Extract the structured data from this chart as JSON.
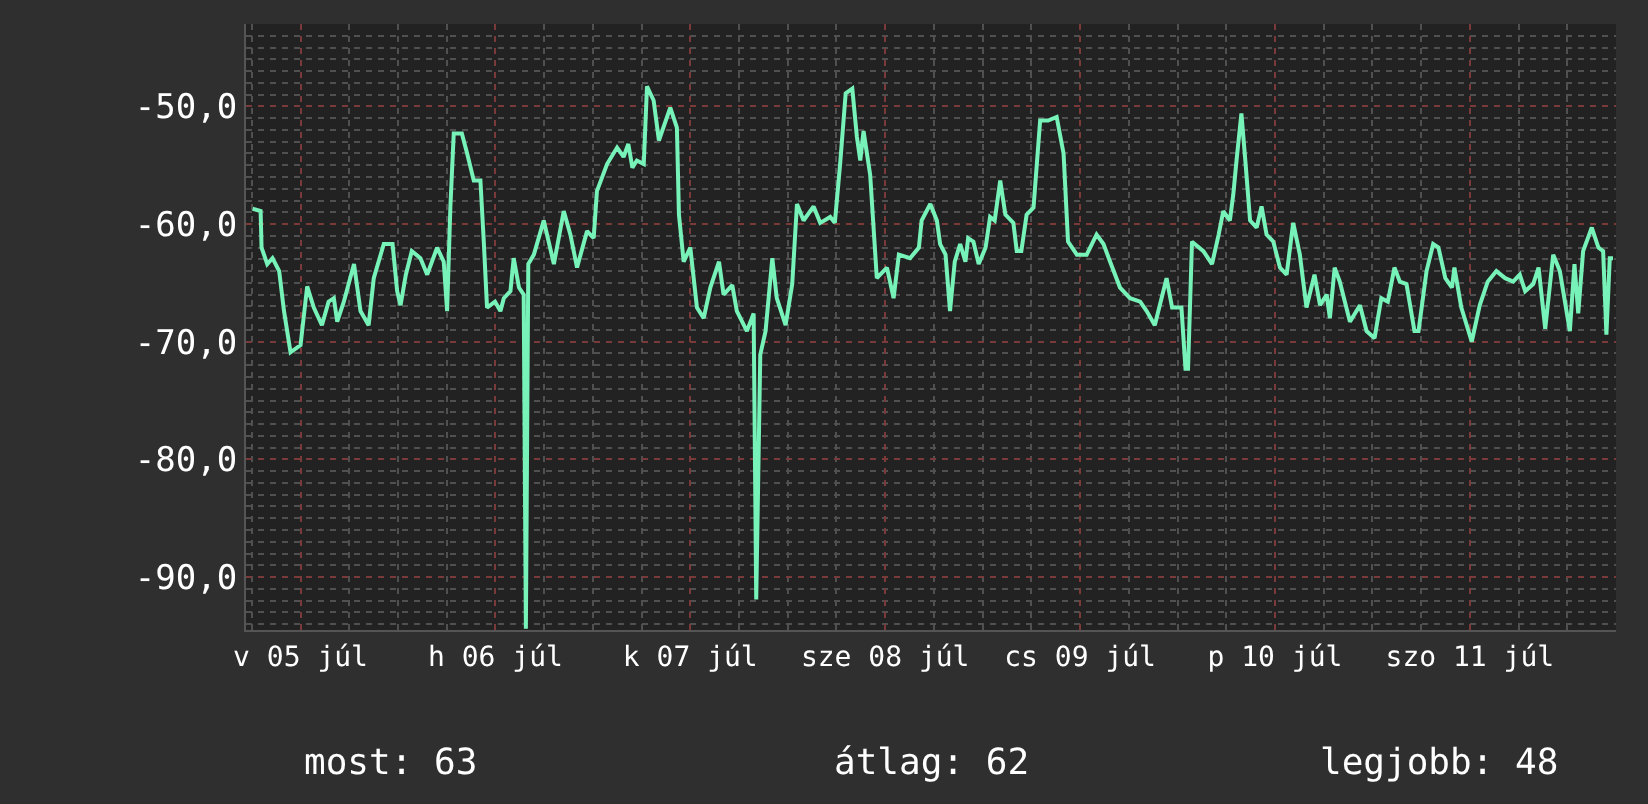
{
  "chart_data": {
    "type": "line",
    "x": [
      "--07-04T18:06",
      "--07-04T19:05",
      "--07-04T19:12",
      "--07-04T19:54",
      "--07-04T20:33",
      "--07-04T21:22",
      "--07-04T21:58",
      "--07-04T22:46",
      "--07-05T00:00",
      "--07-05T00:49",
      "--07-05T01:38",
      "--07-05T02:38",
      "--07-05T03:27",
      "--07-05T04:06",
      "--07-05T04:31",
      "--07-05T05:20",
      "--07-05T06:35",
      "--07-05T07:23",
      "--07-05T08:23",
      "--07-05T09:01",
      "--07-05T10:15",
      "--07-05T11:20",
      "--07-05T11:54",
      "--07-05T12:19",
      "--07-05T12:58",
      "--07-05T13:42",
      "--07-05T14:46",
      "--07-05T15:36",
      "--07-05T16:49",
      "--07-05T17:38",
      "--07-05T18:03",
      "--07-05T18:27",
      "--07-05T18:52",
      "--07-05T19:52",
      "--07-05T20:31",
      "--07-05T21:20",
      "--07-05T22:09",
      "--07-05T22:34",
      "--07-05T22:58",
      "--07-05T23:57",
      "--07-06T00:37",
      "--07-06T01:02",
      "--07-06T01:51",
      "--07-06T02:15",
      "--07-06T02:54",
      "--07-06T03:29",
      "--07-06T03:45",
      "--07-06T04:03",
      "--07-06T04:44",
      "--07-06T05:57",
      "--07-06T07:12",
      "--07-06T08:25",
      "--07-06T09:14",
      "--07-06T10:03",
      "--07-06T11:17",
      "--07-06T12:06",
      "--07-06T12:30",
      "--07-06T13:45",
      "--07-06T14:59",
      "--07-06T15:47",
      "--07-06T16:22",
      "--07-06T16:52",
      "--07-06T17:25",
      "--07-06T18:16",
      "--07-06T18:40",
      "--07-06T19:29",
      "--07-06T20:08",
      "--07-06T21:32",
      "--07-06T22:21",
      "--07-06T22:36",
      "--07-06T23:11",
      "--07-07T00:00",
      "--07-07T00:49",
      "--07-07T01:39",
      "--07-07T02:28",
      "--07-07T03:32",
      "--07-07T04:06",
      "--07-07T05:10",
      "--07-07T05:44",
      "--07-07T06:58",
      "--07-07T07:48",
      "--07-07T08:07",
      "--07-07T08:37",
      "--07-07T09:16",
      "--07-07T10:06",
      "--07-07T10:39",
      "--07-07T11:44",
      "--07-07T12:33",
      "--07-07T13:08",
      "--07-07T13:57",
      "--07-07T15:11",
      "--07-07T16:00",
      "--07-07T17:14",
      "--07-07T17:48",
      "--07-07T18:27",
      "--07-07T19:08",
      "--07-07T19:57",
      "--07-07T20:31",
      "--07-07T20:56",
      "--07-07T21:20",
      "--07-07T22:09",
      "--07-07T22:58",
      "--07-08T00:13",
      "--07-08T01:02",
      "--07-08T01:41",
      "--07-08T03:04",
      "--07-08T04:09",
      "--07-08T04:29",
      "--07-08T05:33",
      "--07-08T06:22",
      "--07-08T06:46",
      "--07-08T07:26",
      "--07-08T07:59",
      "--07-08T08:34",
      "--07-08T09:14",
      "--07-08T09:53",
      "--07-08T10:13",
      "--07-08T10:52",
      "--07-08T11:31",
      "--07-08T12:22",
      "--07-08T12:55",
      "--07-08T13:29",
      "--07-08T14:10",
      "--07-08T14:48",
      "--07-08T15:47",
      "--07-08T16:12",
      "--07-08T16:46",
      "--07-08T17:25",
      "--07-08T18:16",
      "--07-08T19:05",
      "--07-08T20:04",
      "--07-08T21:07",
      "--07-08T21:58",
      "--07-08T22:31",
      "--07-08T23:36",
      "--07-09T00:49",
      "--07-09T02:02",
      "--07-09T02:53",
      "--07-09T03:42",
      "--07-09T04:55",
      "--07-09T06:09",
      "--07-09T07:24",
      "--07-09T08:12",
      "--07-09T09:12",
      "--07-09T10:39",
      "--07-09T11:20",
      "--07-09T12:29",
      "--07-09T12:59",
      "--07-09T13:18",
      "--07-09T13:47",
      "--07-09T15:11",
      "--07-09T16:15",
      "--07-09T17:04",
      "--07-09T17:38",
      "--07-09T18:27",
      "--07-09T18:52",
      "--07-09T19:16",
      "--07-09T19:52",
      "--07-09T20:21",
      "--07-09T20:56",
      "--07-09T21:45",
      "--07-09T22:21",
      "--07-09T22:58",
      "--07-09T23:48",
      "--07-10T00:37",
      "--07-10T01:26",
      "--07-10T02:15",
      "--07-10T03:04",
      "--07-10T03:53",
      "--07-10T04:52",
      "--07-10T05:33",
      "--07-10T06:22",
      "--07-10T06:46",
      "--07-10T07:21",
      "--07-10T07:59",
      "--07-10T09:14",
      "--07-10T10:28",
      "--07-10T11:17",
      "--07-10T12:16",
      "--07-10T13:06",
      "--07-10T13:54",
      "--07-10T14:43",
      "--07-10T15:23",
      "--07-10T16:12",
      "--07-10T17:11",
      "--07-10T17:41",
      "--07-10T18:40",
      "--07-10T19:29",
      "--07-10T20:08",
      "--07-10T20:59",
      "--07-10T21:48",
      "--07-10T22:06",
      "--07-10T22:57",
      "--07-11T00:14",
      "--07-11T01:13",
      "--07-11T02:12",
      "--07-11T03:16",
      "--07-11T04:21",
      "--07-11T05:20",
      "--07-11T06:09",
      "--07-11T06:49",
      "--07-11T07:48",
      "--07-11T08:28",
      "--07-11T09:17",
      "--07-11T10:16",
      "--07-11T11:05",
      "--07-11T12:19",
      "--07-11T12:53",
      "--07-11T13:21",
      "--07-11T13:57",
      "--07-11T15:01",
      "--07-11T15:50",
      "--07-11T16:25",
      "--07-11T16:49",
      "--07-11T17:14",
      "--07-11T17:38"
    ],
    "series": [
      {
        "color": "#77f2b8",
        "values": [
          -58.7,
          -58.9,
          -62.0,
          -63.4,
          -62.9,
          -64.0,
          -67.4,
          -70.9,
          -70.3,
          -65.3,
          -67.1,
          -68.6,
          -66.6,
          -66.3,
          -68.3,
          -66.6,
          -63.4,
          -67.4,
          -68.6,
          -64.6,
          -61.7,
          -61.7,
          -65.7,
          -66.9,
          -64.3,
          -62.3,
          -62.9,
          -64.3,
          -62.0,
          -63.2,
          -67.4,
          -58.6,
          -52.3,
          -52.3,
          -54.0,
          -56.3,
          -56.3,
          -61.5,
          -67.1,
          -66.6,
          -67.4,
          -66.3,
          -65.7,
          -62.9,
          -65.4,
          -66.0,
          -94.4,
          -63.4,
          -62.6,
          -59.7,
          -63.4,
          -58.9,
          -60.9,
          -63.7,
          -60.6,
          -61.2,
          -57.2,
          -54.9,
          -53.5,
          -54.3,
          -53.2,
          -55.2,
          -54.6,
          -54.9,
          -48.3,
          -49.5,
          -52.9,
          -50.1,
          -51.8,
          -59.2,
          -63.2,
          -62.0,
          -67.1,
          -68.0,
          -65.4,
          -63.2,
          -66.0,
          -65.2,
          -67.4,
          -69.1,
          -67.6,
          -91.9,
          -71.1,
          -69.1,
          -62.9,
          -66.3,
          -68.6,
          -65.1,
          -58.3,
          -59.7,
          -58.5,
          -59.9,
          -59.4,
          -59.9,
          -54.9,
          -48.9,
          -48.5,
          -52.6,
          -54.6,
          -52.1,
          -55.8,
          -64.6,
          -63.7,
          -66.3,
          -62.6,
          -62.9,
          -62.0,
          -59.7,
          -58.3,
          -59.7,
          -61.7,
          -62.6,
          -67.4,
          -63.2,
          -61.7,
          -63.2,
          -61.2,
          -61.5,
          -63.4,
          -62.0,
          -59.4,
          -59.7,
          -56.3,
          -59.2,
          -59.9,
          -62.3,
          -62.3,
          -59.2,
          -58.6,
          -51.2,
          -51.2,
          -50.9,
          -54.0,
          -61.5,
          -62.6,
          -62.6,
          -60.9,
          -61.7,
          -63.2,
          -65.4,
          -66.3,
          -66.6,
          -67.4,
          -68.6,
          -64.6,
          -67.1,
          -67.1,
          -72.3,
          -72.3,
          -61.5,
          -62.3,
          -63.4,
          -60.9,
          -58.9,
          -59.7,
          -57.5,
          -54.6,
          -50.6,
          -54.6,
          -59.7,
          -60.3,
          -58.5,
          -60.9,
          -61.5,
          -63.7,
          -64.3,
          -59.9,
          -62.6,
          -67.1,
          -64.3,
          -66.9,
          -66.0,
          -68.0,
          -63.7,
          -64.9,
          -68.3,
          -66.9,
          -69.1,
          -69.7,
          -66.3,
          -66.6,
          -63.7,
          -64.9,
          -65.1,
          -69.1,
          -69.1,
          -64.0,
          -61.7,
          -62.0,
          -64.6,
          -65.4,
          -63.7,
          -67.1,
          -70.0,
          -66.9,
          -64.9,
          -64.0,
          -64.6,
          -64.9,
          -64.3,
          -65.7,
          -65.1,
          -63.7,
          -68.9,
          -62.6,
          -64.0,
          -69.1,
          -63.4,
          -67.6,
          -62.3,
          -60.3,
          -62.0,
          -62.3,
          -69.4,
          -62.9,
          -62.9
        ]
      }
    ],
    "xlim": [
      "--07-04T17:17",
      "--07-11T18:00"
    ],
    "xticks": [
      {
        "value": "--07-05",
        "label": "v 05 júl"
      },
      {
        "value": "--07-06",
        "label": "h 06 júl"
      },
      {
        "value": "--07-07",
        "label": "k 07 júl"
      },
      {
        "value": "--07-08",
        "label": "sze 08 júl"
      },
      {
        "value": "--07-09",
        "label": "cs 09 júl"
      },
      {
        "value": "--07-10",
        "label": "p 10 júl"
      },
      {
        "value": "--07-11",
        "label": "szo 11 júl"
      }
    ],
    "ylim": [
      -94.5,
      -43
    ],
    "yticks": [
      {
        "value": -90,
        "label": "-90,0"
      },
      {
        "value": -80,
        "label": "-80,0"
      },
      {
        "value": -70,
        "label": "-70,0"
      },
      {
        "value": -60,
        "label": "-60,0"
      },
      {
        "value": -50,
        "label": "-50,0"
      }
    ],
    "grid": true,
    "line_style": "solid",
    "annotations": [
      "most: 63",
      "átlag: 62",
      "legjobb: 48"
    ]
  }
}
